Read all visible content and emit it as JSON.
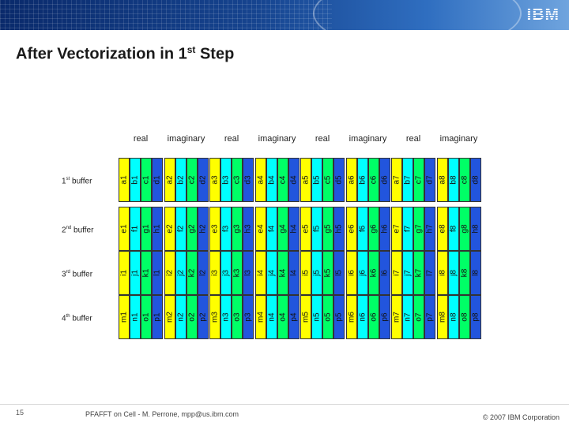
{
  "logo": "IBM",
  "title": {
    "main": "After Vectorization in 1",
    "sup": "st",
    "tail": " Step"
  },
  "column_headers": [
    "real",
    "imaginary",
    "real",
    "imaginary",
    "real",
    "imaginary",
    "real",
    "imaginary"
  ],
  "rows": [
    {
      "num": "1",
      "sup": "st",
      "label": " buffer",
      "groups": [
        [
          "a1",
          "b1",
          "c1",
          "d1"
        ],
        [
          "a2",
          "b2",
          "c2",
          "d2"
        ],
        [
          "a3",
          "b3",
          "c3",
          "d3"
        ],
        [
          "a4",
          "b4",
          "c4",
          "d4"
        ],
        [
          "a5",
          "b5",
          "c5",
          "d5"
        ],
        [
          "a6",
          "b6",
          "c6",
          "d6"
        ],
        [
          "a7",
          "b7",
          "c7",
          "d7"
        ],
        [
          "a8",
          "b8",
          "c8",
          "d8"
        ]
      ]
    },
    {
      "num": "2",
      "sup": "nd",
      "label": " buffer",
      "groups": [
        [
          "e1",
          "f1",
          "g1",
          "h1"
        ],
        [
          "e2",
          "f2",
          "g2",
          "h2"
        ],
        [
          "e3",
          "f3",
          "g3",
          "h3"
        ],
        [
          "e4",
          "f4",
          "g4",
          "h4"
        ],
        [
          "e5",
          "f5",
          "g5",
          "h5"
        ],
        [
          "e6",
          "f6",
          "g6",
          "h6"
        ],
        [
          "e7",
          "f7",
          "g7",
          "h7"
        ],
        [
          "e8",
          "f8",
          "g8",
          "h8"
        ]
      ]
    },
    {
      "num": "3",
      "sup": "rd",
      "label": " buffer",
      "groups": [
        [
          "i1",
          "j1",
          "k1",
          "l1"
        ],
        [
          "i2",
          "j2",
          "k2",
          "l2"
        ],
        [
          "i3",
          "j3",
          "k3",
          "l3"
        ],
        [
          "i4",
          "j4",
          "k4",
          "l4"
        ],
        [
          "i5",
          "j5",
          "k5",
          "l5"
        ],
        [
          "i6",
          "j6",
          "k6",
          "l6"
        ],
        [
          "i7",
          "j7",
          "k7",
          "l7"
        ],
        [
          "i8",
          "j8",
          "k8",
          "l8"
        ]
      ]
    },
    {
      "num": "4",
      "sup": "th",
      "label": " buffer",
      "groups": [
        [
          "m1",
          "n1",
          "o1",
          "p1"
        ],
        [
          "m2",
          "n2",
          "o2",
          "p2"
        ],
        [
          "m3",
          "n3",
          "o3",
          "p3"
        ],
        [
          "m4",
          "n4",
          "o4",
          "p4"
        ],
        [
          "m5",
          "n5",
          "o5",
          "p5"
        ],
        [
          "m6",
          "n6",
          "o6",
          "p6"
        ],
        [
          "m7",
          "n7",
          "o7",
          "p7"
        ],
        [
          "m8",
          "n8",
          "o8",
          "p8"
        ]
      ]
    }
  ],
  "colors": {
    "cell_1": "#ffff00",
    "cell_2": "#00ffff",
    "cell_3": "#00ff66",
    "cell_4": "#2255dd"
  },
  "footer": {
    "page_number": "15",
    "center": "PFAFFT on Cell - M. Perrone, mpp@us.ibm.com",
    "right": "© 2007 IBM Corporation"
  }
}
